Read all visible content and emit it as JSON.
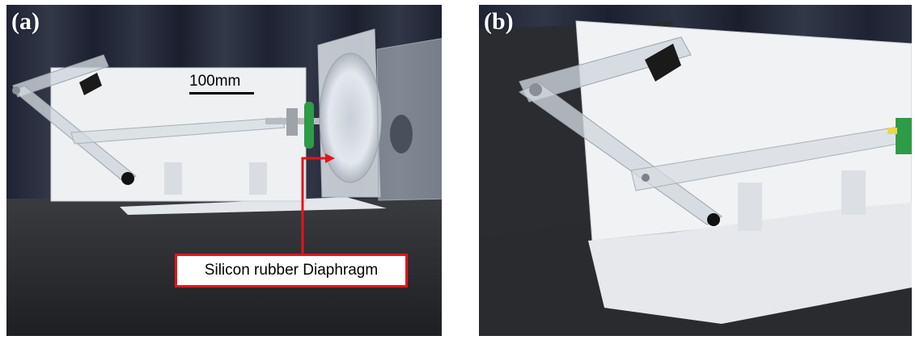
{
  "panels": [
    {
      "label": "(a)",
      "scale_bar_text": "100mm",
      "annotation": "Silicon rubber Diaphragm"
    },
    {
      "label": "(b)"
    }
  ],
  "colors": {
    "callout_red": "#e2151b",
    "curtain": "#262a3a",
    "floor": "#2a2b2e",
    "board": "#f0f1f3",
    "green_coupler": "#2e9b47"
  }
}
